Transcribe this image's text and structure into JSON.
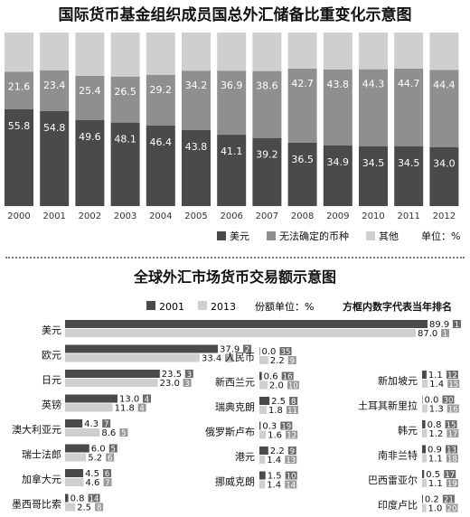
{
  "chart_data": [
    {
      "type": "bar",
      "stacked": true,
      "title": "国际货币基金组织成员国总外汇储备比重变化示意图",
      "categories": [
        "2000",
        "2001",
        "2002",
        "2003",
        "2004",
        "2005",
        "2006",
        "2007",
        "2008",
        "2009",
        "2010",
        "2011",
        "2012"
      ],
      "series": [
        {
          "name": "美元",
          "values": [
            55.8,
            54.8,
            49.6,
            48.1,
            46.4,
            43.8,
            41.1,
            39.2,
            36.5,
            34.9,
            34.5,
            34.5,
            34.0
          ],
          "color": "#4a4a4a"
        },
        {
          "name": "无法确定的币种",
          "values": [
            21.6,
            23.4,
            25.4,
            26.5,
            29.2,
            34.2,
            36.9,
            38.6,
            42.7,
            43.8,
            44.3,
            44.7,
            44.4
          ],
          "color": "#8f8f8f"
        },
        {
          "name": "其他",
          "values": [
            null,
            null,
            null,
            null,
            null,
            null,
            null,
            null,
            null,
            null,
            null,
            null,
            null
          ],
          "color": "#cfcfcf"
        }
      ],
      "unit_label": "单位：%",
      "ylim": [
        0,
        100
      ],
      "legend_position": "bottom-right",
      "grid": false
    },
    {
      "type": "bar",
      "orientation": "horizontal",
      "title": "全球外汇市场货币交易额示意图",
      "unit_label": "份额单位：%",
      "note": "方框内数字代表当年排名",
      "legend_position": "top",
      "series_names": [
        "2001",
        "2013"
      ],
      "series_colors": [
        "#4a4a4a",
        "#cfcfcf"
      ],
      "groups": [
        {
          "column": 0,
          "currency": "美元",
          "v2001": 89.9,
          "r2001": "1",
          "v2013": 87.0,
          "r2013": "1"
        },
        {
          "column": 0,
          "currency": "欧元",
          "v2001": 37.9,
          "r2001": "2",
          "v2013": 33.4,
          "r2013": "2"
        },
        {
          "column": 0,
          "currency": "日元",
          "v2001": 23.5,
          "r2001": "3",
          "v2013": 23.0,
          "r2013": "3"
        },
        {
          "column": 0,
          "currency": "英镑",
          "v2001": 13.0,
          "r2001": "4",
          "v2013": 11.8,
          "r2013": "4"
        },
        {
          "column": 0,
          "currency": "澳大利亚元",
          "v2001": 4.3,
          "r2001": "7",
          "v2013": 8.6,
          "r2013": "5"
        },
        {
          "column": 0,
          "currency": "瑞士法郎",
          "v2001": 6.0,
          "r2001": "5",
          "v2013": 5.2,
          "r2013": "6"
        },
        {
          "column": 0,
          "currency": "加拿大元",
          "v2001": 4.5,
          "r2001": "6",
          "v2013": 4.6,
          "r2013": "7"
        },
        {
          "column": 0,
          "currency": "墨西哥比索",
          "v2001": 0.8,
          "r2001": "14",
          "v2013": 2.5,
          "r2013": "8"
        },
        {
          "column": 1,
          "currency": "人民币",
          "v2001": 0,
          "r2001": "35",
          "v2013": 2.2,
          "r2013": "9"
        },
        {
          "column": 1,
          "currency": "新西兰元",
          "v2001": 0.6,
          "r2001": "16",
          "v2013": 2.0,
          "r2013": "10"
        },
        {
          "column": 1,
          "currency": "瑞典克朗",
          "v2001": 2.5,
          "r2001": "8",
          "v2013": 1.8,
          "r2013": "11"
        },
        {
          "column": 1,
          "currency": "俄罗斯卢布",
          "v2001": 0.3,
          "r2001": "19",
          "v2013": 1.6,
          "r2013": "12"
        },
        {
          "column": 1,
          "currency": "港元",
          "v2001": 2.2,
          "r2001": "9",
          "v2013": 1.4,
          "r2013": "13"
        },
        {
          "column": 1,
          "currency": "挪威克朗",
          "v2001": 1.5,
          "r2001": "10",
          "v2013": 1.4,
          "r2013": "14"
        },
        {
          "column": 2,
          "currency": "新加坡元",
          "v2001": 1.1,
          "r2001": "12",
          "v2013": 1.4,
          "r2013": "15"
        },
        {
          "column": 2,
          "currency": "土耳其新里拉",
          "v2001": 0,
          "r2001": "30",
          "v2013": 1.3,
          "r2013": "16"
        },
        {
          "column": 2,
          "currency": "韩元",
          "v2001": 0.8,
          "r2001": "15",
          "v2013": 1.2,
          "r2013": "17"
        },
        {
          "column": 2,
          "currency": "南非兰特",
          "v2001": 0.9,
          "r2001": "13",
          "v2013": 1.1,
          "r2013": "18"
        },
        {
          "column": 2,
          "currency": "巴西雷亚尔",
          "v2001": 0.5,
          "r2001": "17",
          "v2013": 1.1,
          "r2013": "19"
        },
        {
          "column": 2,
          "currency": "印度卢比",
          "v2001": 0.2,
          "r2001": "21",
          "v2013": 1.0,
          "r2013": "20"
        }
      ]
    }
  ]
}
